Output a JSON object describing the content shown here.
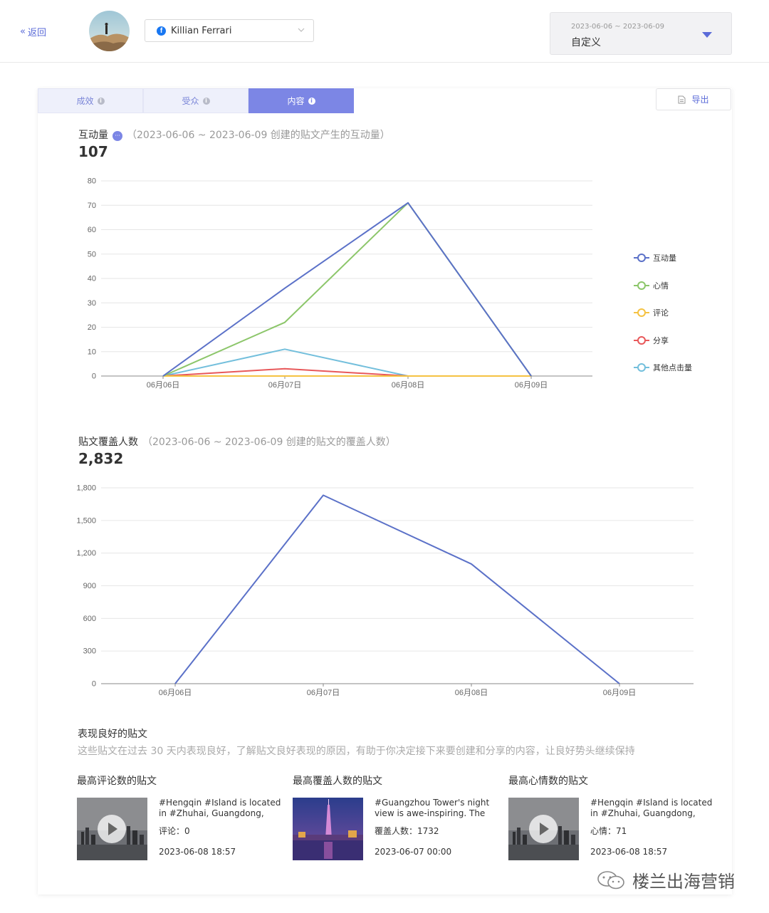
{
  "header": {
    "back_label": "返回",
    "account_name": "Killian Ferrari",
    "date_range": "2023-06-06 ~ 2023-06-09",
    "date_mode": "自定义"
  },
  "tabs": [
    {
      "label": "成效"
    },
    {
      "label": "受众"
    },
    {
      "label": "内容"
    }
  ],
  "export_label": "导出",
  "engagement": {
    "title": "互动量",
    "subtitle": "（2023-06-06 ~ 2023-06-09 创建的贴文产生的互动量）",
    "total": "107"
  },
  "reach": {
    "title": "贴文覆盖人数",
    "subtitle": "（2023-06-06 ~ 2023-06-09 创建的贴文的覆盖人数）",
    "total": "2,832"
  },
  "chart_data": [
    {
      "type": "line",
      "categories": [
        "06月06日",
        "06月07日",
        "06月08日",
        "06月09日"
      ],
      "ylim": [
        0,
        80
      ],
      "yticks": [
        0,
        10,
        20,
        30,
        40,
        50,
        60,
        70,
        80
      ],
      "yticklabels": [
        "0",
        "10",
        "20",
        "30",
        "40",
        "50",
        "60",
        "70",
        "80"
      ],
      "grid": true,
      "legend": "right",
      "series": [
        {
          "name": "互动量",
          "values": [
            0,
            36,
            71,
            0
          ],
          "color": "#5b71c8"
        },
        {
          "name": "心情",
          "values": [
            0,
            22,
            71,
            0
          ],
          "color": "#8cc66a"
        },
        {
          "name": "评论",
          "values": [
            0,
            0,
            0,
            0
          ],
          "color": "#f5c242"
        },
        {
          "name": "分享",
          "values": [
            0,
            3,
            0,
            0
          ],
          "color": "#e8585a"
        },
        {
          "name": "其他点击量",
          "values": [
            0,
            11,
            0,
            0
          ],
          "color": "#73bfdc"
        }
      ]
    },
    {
      "type": "line",
      "categories": [
        "06月06日",
        "06月07日",
        "06月08日",
        "06月09日"
      ],
      "ylim": [
        0,
        1800
      ],
      "yticks": [
        0,
        300,
        600,
        900,
        1200,
        1500,
        1800
      ],
      "yticklabels": [
        "0",
        "300",
        "600",
        "900",
        "1,200",
        "1,500",
        "1,800"
      ],
      "grid": true,
      "series": [
        {
          "values": [
            0,
            1732,
            1100,
            0
          ],
          "color": "#5b71c8"
        }
      ]
    }
  ],
  "good_posts": {
    "title": "表现良好的贴文",
    "description": "这些贴文在过去 30 天内表现良好，了解贴文良好表现的原因，有助于你决定接下来要创建和分享的内容，让良好势头继续保持",
    "items": [
      {
        "heading": "最高评论数的贴文",
        "caption": "#Hengqin #Island is located in #Zhuhai, Guangdong, #Chi…",
        "metric": "评论：0",
        "time": "2023-06-08 18:57"
      },
      {
        "heading": "最高覆盖人数的贴文",
        "caption": "#Guangzhou Tower's night view is awe-inspiring. The #to…",
        "metric": "覆盖人数：1732",
        "time": "2023-06-07 00:00"
      },
      {
        "heading": "最高心情数的贴文",
        "caption": "#Hengqin #Island is located in #Zhuhai, Guangdong, #Chi…",
        "metric": "心情：71",
        "time": "2023-06-08 18:57"
      }
    ]
  },
  "watermark": "楼兰出海营销",
  "colors": {
    "accent": "#7c86e5",
    "link": "#5b6bd8"
  }
}
